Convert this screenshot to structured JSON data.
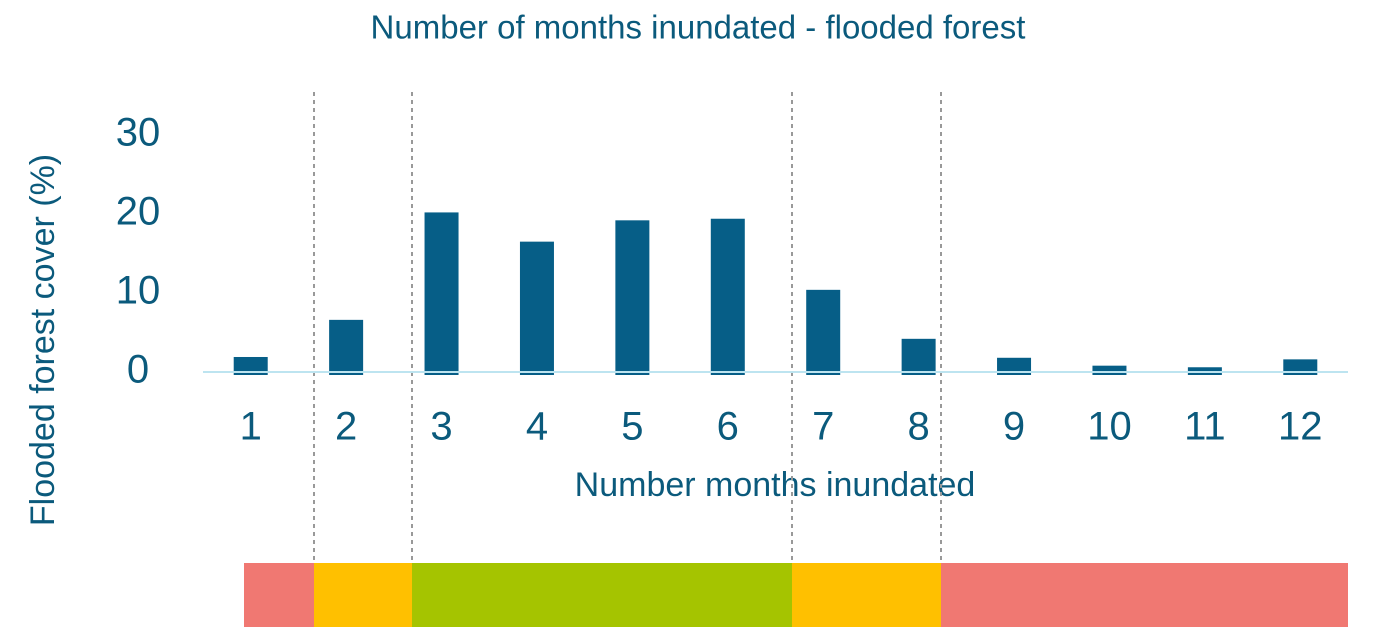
{
  "chart_data": {
    "type": "bar",
    "title": "Number of months inundated - flooded forest",
    "x_label": "Number months inundated",
    "y_label": "Flooded forest cover (%)",
    "categories": [
      "1",
      "2",
      "3",
      "4",
      "5",
      "6",
      "7",
      "8",
      "9",
      "10",
      "11",
      "12"
    ],
    "values": [
      1.9,
      6.6,
      20.2,
      16.5,
      19.2,
      19.4,
      10.4,
      4.2,
      1.8,
      0.8,
      0.6,
      1.6
    ],
    "color": "#065e87",
    "ylim": [
      0,
      35
    ],
    "yticks": [
      0,
      10,
      20,
      30
    ],
    "grid": false
  }
}
